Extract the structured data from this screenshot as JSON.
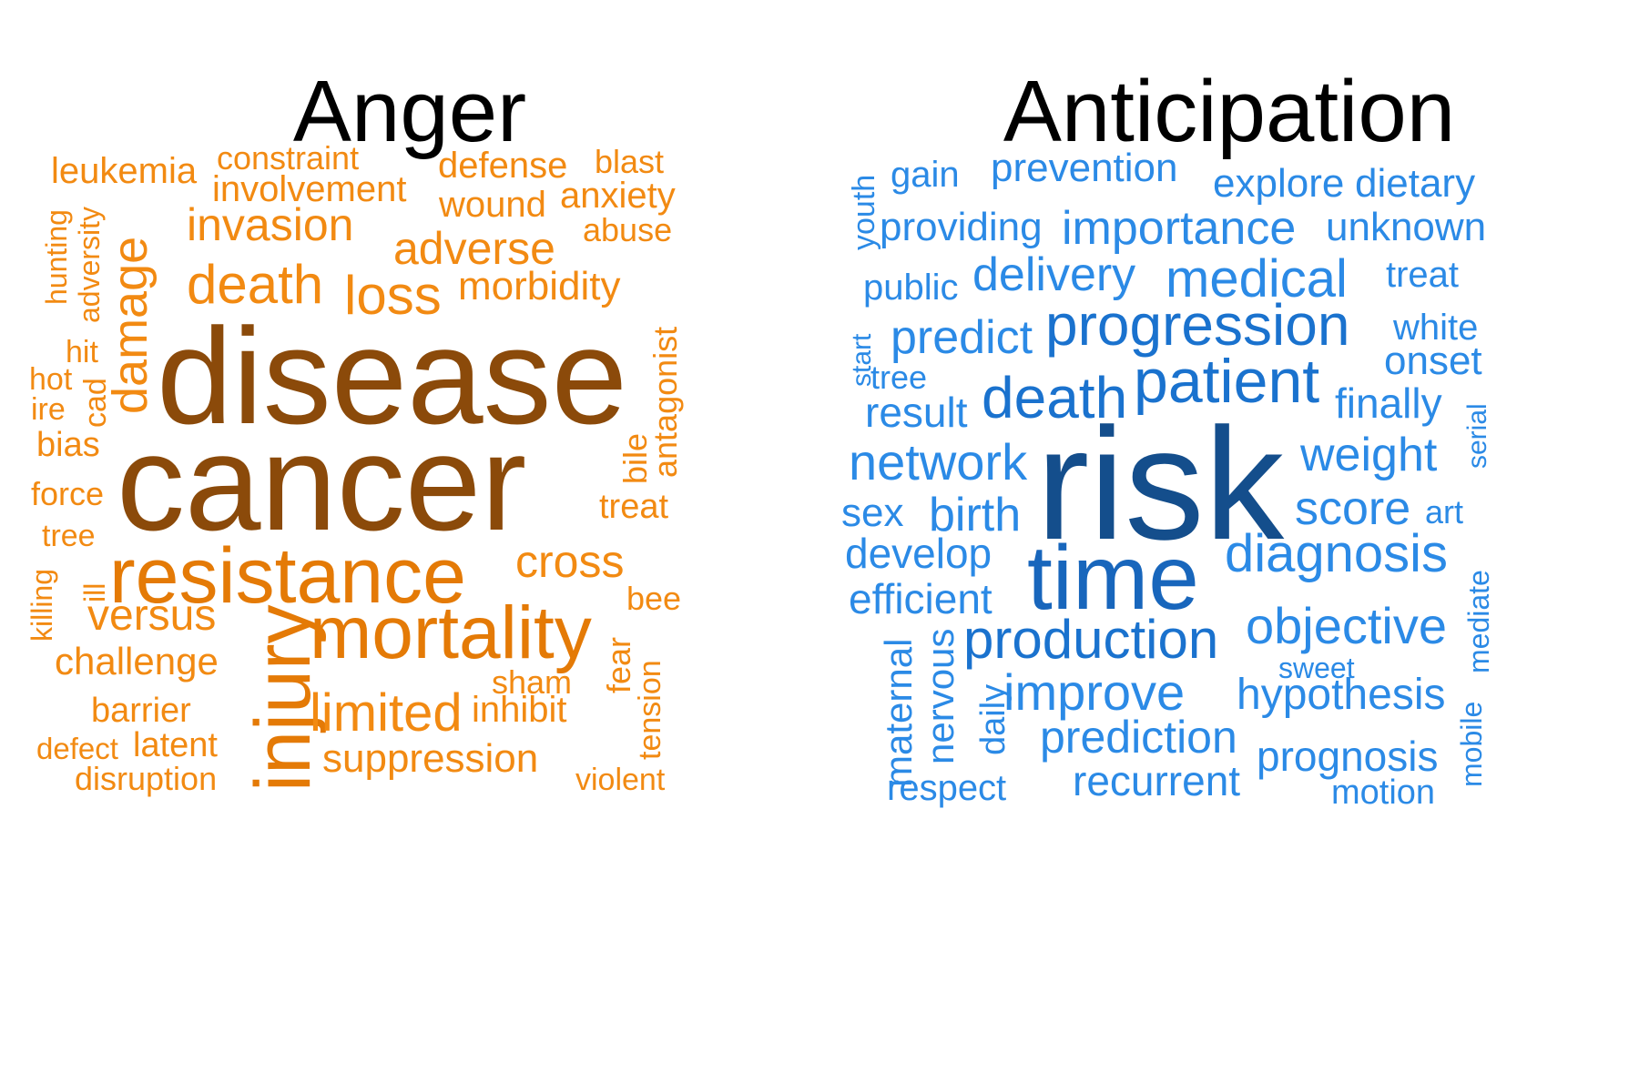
{
  "chart_data": [
    {
      "type": "wordcloud",
      "title": "Anger",
      "palette": {
        "top": "#8B4A0A",
        "high": "#E47A06",
        "normal": "#F28A12"
      },
      "words": [
        {
          "text": "disease",
          "weight": 100,
          "color": "#8B4A0A",
          "orientation": "horizontal"
        },
        {
          "text": "cancer",
          "weight": 100,
          "color": "#8B4A0A",
          "orientation": "horizontal"
        },
        {
          "text": "resistance",
          "weight": 62,
          "color": "#E47A06",
          "orientation": "horizontal"
        },
        {
          "text": "mortality",
          "weight": 58,
          "color": "#E47A06",
          "orientation": "horizontal"
        },
        {
          "text": "injury",
          "weight": 58,
          "color": "#E47A06",
          "orientation": "vertical"
        },
        {
          "text": "damage",
          "weight": 45,
          "color": "#F28A12",
          "orientation": "vertical"
        },
        {
          "text": "death",
          "weight": 48,
          "color": "#F28A12",
          "orientation": "horizontal"
        },
        {
          "text": "loss",
          "weight": 48,
          "color": "#F28A12",
          "orientation": "horizontal"
        },
        {
          "text": "invasion",
          "weight": 40,
          "color": "#F28A12",
          "orientation": "horizontal"
        },
        {
          "text": "adverse",
          "weight": 40,
          "color": "#F28A12",
          "orientation": "horizontal"
        },
        {
          "text": "limited",
          "weight": 44,
          "color": "#F28A12",
          "orientation": "horizontal"
        },
        {
          "text": "versus",
          "weight": 40,
          "color": "#F28A12",
          "orientation": "horizontal"
        },
        {
          "text": "suppression",
          "weight": 36,
          "color": "#F28A12",
          "orientation": "horizontal"
        },
        {
          "text": "cross",
          "weight": 40,
          "color": "#F28A12",
          "orientation": "horizontal"
        },
        {
          "text": "morbidity",
          "weight": 35,
          "color": "#F28A12",
          "orientation": "horizontal"
        },
        {
          "text": "challenge",
          "weight": 33,
          "color": "#F28A12",
          "orientation": "horizontal"
        },
        {
          "text": "involvement",
          "weight": 32,
          "color": "#F28A12",
          "orientation": "horizontal"
        },
        {
          "text": "defense",
          "weight": 32,
          "color": "#F28A12",
          "orientation": "horizontal"
        },
        {
          "text": "wound",
          "weight": 32,
          "color": "#F28A12",
          "orientation": "horizontal"
        },
        {
          "text": "anxiety",
          "weight": 32,
          "color": "#F28A12",
          "orientation": "horizontal"
        },
        {
          "text": "leukemia",
          "weight": 32,
          "color": "#F28A12",
          "orientation": "horizontal"
        },
        {
          "text": "constraint",
          "weight": 28,
          "color": "#F28A12",
          "orientation": "horizontal"
        },
        {
          "text": "blast",
          "weight": 28,
          "color": "#F28A12",
          "orientation": "horizontal"
        },
        {
          "text": "abuse",
          "weight": 28,
          "color": "#F28A12",
          "orientation": "horizontal"
        },
        {
          "text": "antagonist",
          "weight": 28,
          "color": "#F28A12",
          "orientation": "vertical"
        },
        {
          "text": "bile",
          "weight": 28,
          "color": "#F28A12",
          "orientation": "vertical"
        },
        {
          "text": "treat",
          "weight": 32,
          "color": "#F28A12",
          "orientation": "horizontal"
        },
        {
          "text": "bee",
          "weight": 28,
          "color": "#F28A12",
          "orientation": "horizontal"
        },
        {
          "text": "inhibit",
          "weight": 32,
          "color": "#F28A12",
          "orientation": "horizontal"
        },
        {
          "text": "sham",
          "weight": 28,
          "color": "#F28A12",
          "orientation": "horizontal"
        },
        {
          "text": "fear",
          "weight": 28,
          "color": "#F28A12",
          "orientation": "vertical"
        },
        {
          "text": "tension",
          "weight": 28,
          "color": "#F28A12",
          "orientation": "vertical"
        },
        {
          "text": "violent",
          "weight": 28,
          "color": "#F28A12",
          "orientation": "horizontal"
        },
        {
          "text": "barrier",
          "weight": 30,
          "color": "#F28A12",
          "orientation": "horizontal"
        },
        {
          "text": "latent",
          "weight": 30,
          "color": "#F28A12",
          "orientation": "horizontal"
        },
        {
          "text": "defect",
          "weight": 26,
          "color": "#F28A12",
          "orientation": "horizontal"
        },
        {
          "text": "disruption",
          "weight": 30,
          "color": "#F28A12",
          "orientation": "horizontal"
        },
        {
          "text": "bias",
          "weight": 30,
          "color": "#F28A12",
          "orientation": "horizontal"
        },
        {
          "text": "force",
          "weight": 30,
          "color": "#F28A12",
          "orientation": "horizontal"
        },
        {
          "text": "tree",
          "weight": 28,
          "color": "#F28A12",
          "orientation": "horizontal"
        },
        {
          "text": "hot",
          "weight": 28,
          "color": "#F28A12",
          "orientation": "horizontal"
        },
        {
          "text": "ire",
          "weight": 28,
          "color": "#F28A12",
          "orientation": "horizontal"
        },
        {
          "text": "hit",
          "weight": 28,
          "color": "#F28A12",
          "orientation": "horizontal"
        },
        {
          "text": "cad",
          "weight": 28,
          "color": "#F28A12",
          "orientation": "vertical"
        },
        {
          "text": "hunting",
          "weight": 26,
          "color": "#F28A12",
          "orientation": "vertical"
        },
        {
          "text": "adversity",
          "weight": 26,
          "color": "#F28A12",
          "orientation": "vertical"
        },
        {
          "text": "killing",
          "weight": 26,
          "color": "#F28A12",
          "orientation": "vertical"
        },
        {
          "text": "ill",
          "weight": 26,
          "color": "#F28A12",
          "orientation": "vertical"
        }
      ]
    },
    {
      "type": "wordcloud",
      "title": "Anticipation",
      "palette": {
        "top": "#144E8C",
        "high": "#1866BC",
        "normal": "#2B8AE6"
      },
      "words": [
        {
          "text": "risk",
          "weight": 100,
          "color": "#144E8C",
          "orientation": "horizontal"
        },
        {
          "text": "time",
          "weight": 80,
          "color": "#1866BC",
          "orientation": "horizontal"
        },
        {
          "text": "progression",
          "weight": 52,
          "color": "#1A72CE",
          "orientation": "horizontal"
        },
        {
          "text": "patient",
          "weight": 56,
          "color": "#1A72CE",
          "orientation": "horizontal"
        },
        {
          "text": "death",
          "weight": 52,
          "color": "#1A72CE",
          "orientation": "horizontal"
        },
        {
          "text": "production",
          "weight": 50,
          "color": "#1A72CE",
          "orientation": "horizontal"
        },
        {
          "text": "medical",
          "weight": 48,
          "color": "#2B8AE6",
          "orientation": "horizontal"
        },
        {
          "text": "diagnosis",
          "weight": 48,
          "color": "#2B8AE6",
          "orientation": "horizontal"
        },
        {
          "text": "network",
          "weight": 46,
          "color": "#2B8AE6",
          "orientation": "horizontal"
        },
        {
          "text": "improve",
          "weight": 46,
          "color": "#2B8AE6",
          "orientation": "horizontal"
        },
        {
          "text": "objective",
          "weight": 46,
          "color": "#2B8AE6",
          "orientation": "horizontal"
        },
        {
          "text": "delivery",
          "weight": 42,
          "color": "#2B8AE6",
          "orientation": "horizontal"
        },
        {
          "text": "importance",
          "weight": 42,
          "color": "#2B8AE6",
          "orientation": "horizontal"
        },
        {
          "text": "predict",
          "weight": 42,
          "color": "#2B8AE6",
          "orientation": "horizontal"
        },
        {
          "text": "score",
          "weight": 42,
          "color": "#2B8AE6",
          "orientation": "horizontal"
        },
        {
          "text": "weight",
          "weight": 42,
          "color": "#2B8AE6",
          "orientation": "horizontal"
        },
        {
          "text": "birth",
          "weight": 42,
          "color": "#2B8AE6",
          "orientation": "horizontal"
        },
        {
          "text": "prediction",
          "weight": 40,
          "color": "#2B8AE6",
          "orientation": "horizontal"
        },
        {
          "text": "hypothesis",
          "weight": 40,
          "color": "#2B8AE6",
          "orientation": "horizontal"
        },
        {
          "text": "develop",
          "weight": 38,
          "color": "#2B8AE6",
          "orientation": "horizontal"
        },
        {
          "text": "efficient",
          "weight": 38,
          "color": "#2B8AE6",
          "orientation": "horizontal"
        },
        {
          "text": "result",
          "weight": 38,
          "color": "#2B8AE6",
          "orientation": "horizontal"
        },
        {
          "text": "finally",
          "weight": 38,
          "color": "#2B8AE6",
          "orientation": "horizontal"
        },
        {
          "text": "prognosis",
          "weight": 38,
          "color": "#2B8AE6",
          "orientation": "horizontal"
        },
        {
          "text": "recurrent",
          "weight": 38,
          "color": "#2B8AE6",
          "orientation": "horizontal"
        },
        {
          "text": "providing",
          "weight": 36,
          "color": "#2B8AE6",
          "orientation": "horizontal"
        },
        {
          "text": "unknown",
          "weight": 36,
          "color": "#2B8AE6",
          "orientation": "horizontal"
        },
        {
          "text": "explore",
          "weight": 36,
          "color": "#2B8AE6",
          "orientation": "horizontal"
        },
        {
          "text": "dietary",
          "weight": 36,
          "color": "#2B8AE6",
          "orientation": "horizontal"
        },
        {
          "text": "prevention",
          "weight": 36,
          "color": "#2B8AE6",
          "orientation": "horizontal"
        },
        {
          "text": "onset",
          "weight": 36,
          "color": "#2B8AE6",
          "orientation": "horizontal"
        },
        {
          "text": "sex",
          "weight": 36,
          "color": "#2B8AE6",
          "orientation": "horizontal"
        },
        {
          "text": "respect",
          "weight": 34,
          "color": "#2B8AE6",
          "orientation": "horizontal"
        },
        {
          "text": "public",
          "weight": 34,
          "color": "#2B8AE6",
          "orientation": "horizontal"
        },
        {
          "text": "treat",
          "weight": 34,
          "color": "#2B8AE6",
          "orientation": "horizontal"
        },
        {
          "text": "white",
          "weight": 34,
          "color": "#2B8AE6",
          "orientation": "horizontal"
        },
        {
          "text": "gain",
          "weight": 34,
          "color": "#2B8AE6",
          "orientation": "horizontal"
        },
        {
          "text": "motion",
          "weight": 32,
          "color": "#2B8AE6",
          "orientation": "horizontal"
        },
        {
          "text": "tree",
          "weight": 30,
          "color": "#2B8AE6",
          "orientation": "horizontal"
        },
        {
          "text": "art",
          "weight": 30,
          "color": "#2B8AE6",
          "orientation": "horizontal"
        },
        {
          "text": "sweet",
          "weight": 28,
          "color": "#2B8AE6",
          "orientation": "horizontal"
        },
        {
          "text": "maternal",
          "weight": 36,
          "color": "#2B8AE6",
          "orientation": "vertical"
        },
        {
          "text": "nervous",
          "weight": 36,
          "color": "#2B8AE6",
          "orientation": "vertical"
        },
        {
          "text": "daily",
          "weight": 32,
          "color": "#2B8AE6",
          "orientation": "vertical"
        },
        {
          "text": "youth",
          "weight": 28,
          "color": "#2B8AE6",
          "orientation": "vertical"
        },
        {
          "text": "start",
          "weight": 26,
          "color": "#2B8AE6",
          "orientation": "vertical"
        },
        {
          "text": "serial",
          "weight": 26,
          "color": "#2B8AE6",
          "orientation": "vertical"
        },
        {
          "text": "mediate",
          "weight": 28,
          "color": "#2B8AE6",
          "orientation": "vertical"
        },
        {
          "text": "mobile",
          "weight": 28,
          "color": "#2B8AE6",
          "orientation": "vertical"
        }
      ]
    }
  ]
}
